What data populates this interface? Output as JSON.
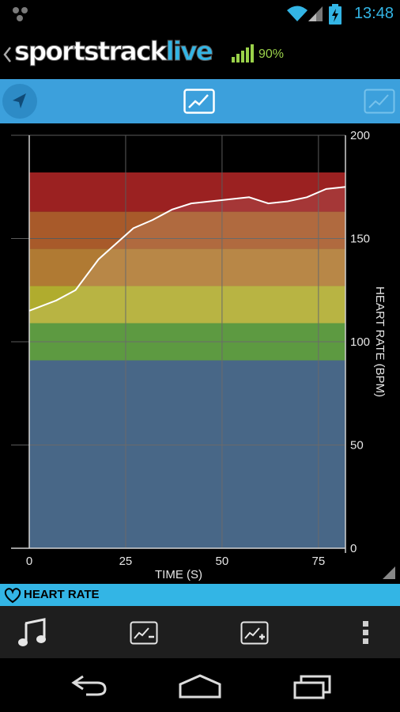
{
  "status_bar": {
    "time": "13:48",
    "icons": [
      "app-notification-icon",
      "wifi-icon",
      "cell-signal-icon",
      "battery-charging-icon"
    ]
  },
  "app_bar": {
    "logo_text_main": "sportstrack",
    "logo_text_accent": "live",
    "signal_percent": "90%",
    "colors": {
      "accent": "#33b5e5",
      "signal": "#9ad14a"
    }
  },
  "toolbar": {
    "icons": [
      "location-arrow-icon",
      "chart-icon",
      "chart-icon-dim"
    ]
  },
  "chart_data": {
    "type": "line",
    "xlabel": "TIME (S)",
    "ylabel": "HEART RATE (BPM)",
    "xlim": [
      0,
      82
    ],
    "ylim": [
      0,
      200
    ],
    "x_ticks": [
      0,
      25,
      50,
      75
    ],
    "y_ticks": [
      0,
      50,
      100,
      150,
      200
    ],
    "grid": true,
    "zones": [
      {
        "from": 0,
        "to": 91,
        "color": "#34567a"
      },
      {
        "from": 91,
        "to": 109,
        "color": "#4b8f2c"
      },
      {
        "from": 109,
        "to": 127,
        "color": "#b0ac2e"
      },
      {
        "from": 127,
        "to": 145,
        "color": "#b07a33"
      },
      {
        "from": 145,
        "to": 163,
        "color": "#a85a2a"
      },
      {
        "from": 163,
        "to": 182,
        "color": "#9b2121"
      }
    ],
    "series": [
      {
        "x": [
          0,
          7,
          12,
          18,
          27,
          32,
          37,
          42,
          47,
          52,
          57,
          62,
          67,
          72,
          77,
          82
        ],
        "values": [
          115,
          120,
          125,
          140,
          155,
          159,
          164,
          167,
          168,
          169,
          170,
          167,
          168,
          170,
          174,
          175
        ],
        "color": "#ffffff"
      }
    ]
  },
  "footer": {
    "heart_rate_label": "HEART RATE"
  },
  "bottom_toolbar": {
    "icons": [
      "music-note-icon",
      "remove-chart-icon",
      "add-chart-icon",
      "overflow-menu-icon"
    ]
  },
  "nav_bar": {
    "icons": [
      "back-icon",
      "home-icon",
      "recent-apps-icon"
    ]
  }
}
